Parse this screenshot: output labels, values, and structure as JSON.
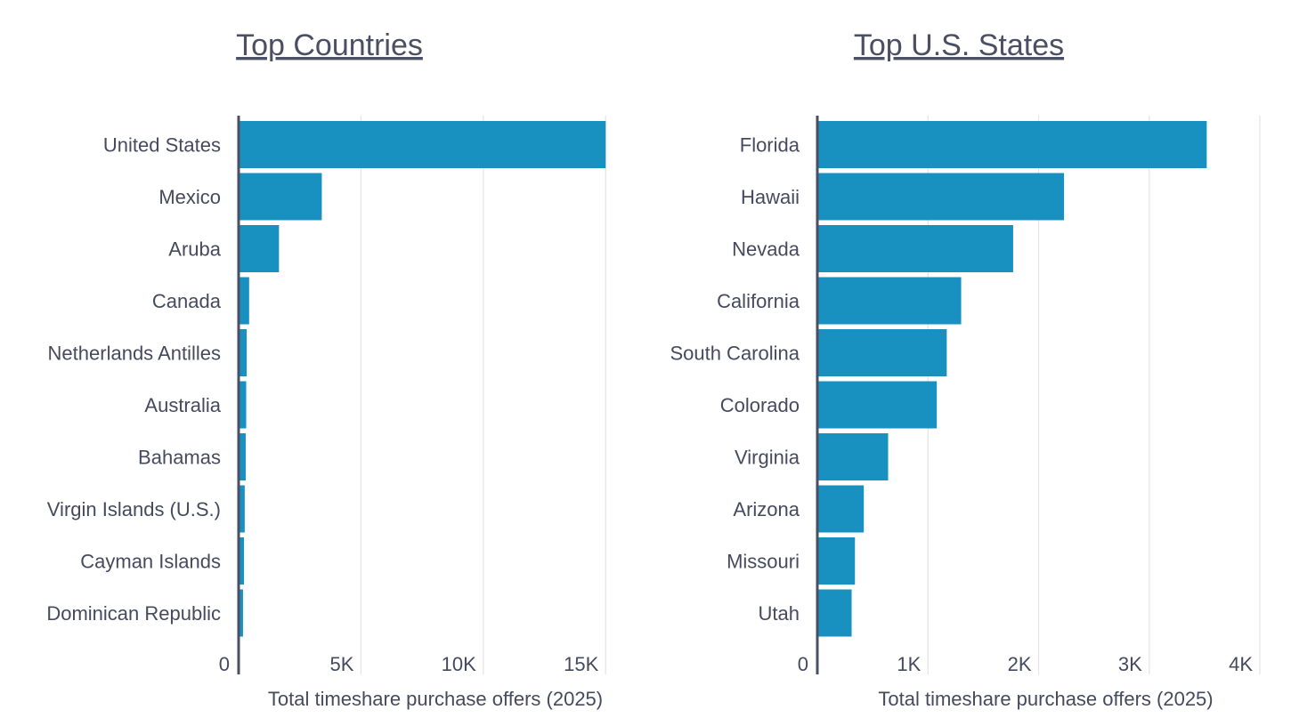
{
  "chart_data": [
    {
      "type": "bar",
      "orientation": "horizontal",
      "title": "Top Countries",
      "xlabel": "Total timeshare purchase offers (2025)",
      "categories": [
        "United States",
        "Mexico",
        "Aruba",
        "Canada",
        "Netherlands Antilles",
        "Australia",
        "Bahamas",
        "Virgin Islands (U.S.)",
        "Cayman Islands",
        "Dominican Republic"
      ],
      "values": [
        15000,
        3400,
        1650,
        430,
        330,
        310,
        290,
        250,
        220,
        180
      ],
      "xlim": [
        0,
        15500
      ],
      "xticks": [
        0,
        5000,
        10000,
        15000
      ],
      "xtick_labels": [
        "0",
        "5K",
        "10K",
        "15K"
      ],
      "grid": "vertical",
      "bar_color": "#1891c0"
    },
    {
      "type": "bar",
      "orientation": "horizontal",
      "title": "Top U.S. States",
      "xlabel": "Total timeshare purchase offers (2025)",
      "categories": [
        "Florida",
        "Hawaii",
        "Nevada",
        "California",
        "South Carolina",
        "Colorado",
        "Virginia",
        "Arizona",
        "Missouri",
        "Utah"
      ],
      "values": [
        3520,
        2230,
        1770,
        1300,
        1170,
        1080,
        640,
        420,
        340,
        310
      ],
      "xlim": [
        0,
        4000
      ],
      "xticks": [
        0,
        1000,
        2000,
        3000,
        4000
      ],
      "xtick_labels": [
        "0",
        "1K",
        "2K",
        "3K",
        "4K"
      ],
      "grid": "vertical",
      "bar_color": "#1891c0"
    }
  ]
}
